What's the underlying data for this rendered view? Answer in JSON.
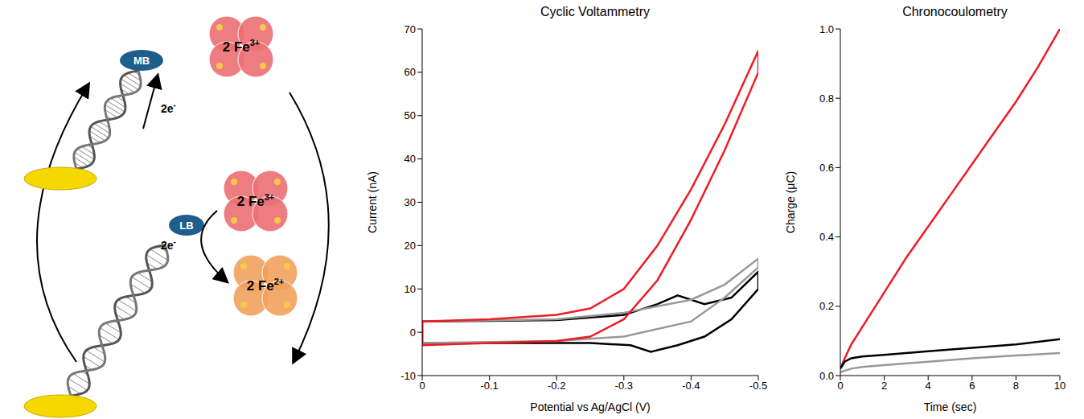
{
  "diagram": {
    "intercalators": [
      "MB",
      "LB"
    ],
    "clusters": [
      {
        "base": "2 Fe",
        "superscript": "3+",
        "color": "#ec6f73"
      },
      {
        "base": "2 Fe",
        "superscript": "3+",
        "color": "#ec6f73"
      },
      {
        "base": "2 Fe",
        "superscript": "2+",
        "color": "#f2a15e"
      }
    ],
    "electron_labels": [
      {
        "base": "2e",
        "superscript": "-"
      },
      {
        "base": "2e",
        "superscript": "-"
      }
    ]
  },
  "chart_data": [
    {
      "type": "line",
      "title": "Cyclic Voltammetry",
      "x_label": "Potential vs Ag/AgCl (V)",
      "y_label": "Current (nA)",
      "xlim": [
        0,
        -0.5
      ],
      "xticks": [
        0,
        -0.1,
        -0.2,
        -0.3,
        -0.4,
        -0.5
      ],
      "ylim": [
        -10,
        70
      ],
      "yticks": [
        -10,
        0,
        10,
        20,
        30,
        40,
        50,
        60,
        70
      ],
      "grid": false,
      "series": [
        {
          "color": "#000000",
          "x": [
            0,
            -0.1,
            -0.2,
            -0.3,
            -0.35,
            -0.38,
            -0.42,
            -0.46,
            -0.5,
            -0.5,
            -0.46,
            -0.42,
            -0.38,
            -0.34,
            -0.31,
            -0.25,
            -0.1,
            0,
            0
          ],
          "values": [
            2.5,
            2.6,
            2.8,
            4,
            6.5,
            8.5,
            6.5,
            8,
            14,
            10,
            3,
            -1,
            -3,
            -4.5,
            -3,
            -2.5,
            -2.5,
            -2.5,
            2.5
          ]
        },
        {
          "color": "#999999",
          "x": [
            0,
            -0.2,
            -0.3,
            -0.4,
            -0.45,
            -0.5,
            -0.5,
            -0.45,
            -0.4,
            -0.3,
            -0.2,
            0,
            0
          ],
          "values": [
            2.5,
            3,
            4.5,
            7.5,
            11,
            17,
            15,
            8,
            2.5,
            -1,
            -2,
            -2.5,
            2.5
          ]
        },
        {
          "color": "#ee1c25",
          "x": [
            0,
            -0.1,
            -0.2,
            -0.25,
            -0.3,
            -0.35,
            -0.4,
            -0.45,
            -0.5,
            -0.5,
            -0.45,
            -0.4,
            -0.35,
            -0.3,
            -0.25,
            -0.2,
            -0.1,
            0,
            0
          ],
          "values": [
            2.5,
            3,
            4,
            5.5,
            10,
            20,
            33,
            48,
            65,
            60,
            42,
            26,
            12,
            3,
            -1,
            -2,
            -2.5,
            -3,
            2.5
          ]
        }
      ]
    },
    {
      "type": "line",
      "title": "Chronocoulometry",
      "x_label": "Time (sec)",
      "y_label": "Charge (μC)",
      "xlim": [
        0,
        10
      ],
      "xticks": [
        0,
        2,
        4,
        6,
        8,
        10
      ],
      "ylim": [
        0,
        1
      ],
      "yticks": [
        {
          "value": 0,
          "label": "0.0"
        },
        0.2,
        0.4,
        0.6,
        0.8,
        {
          "value": 1,
          "label": "1.0"
        }
      ],
      "grid": false,
      "series": [
        {
          "color": "#ee1c25",
          "x": [
            0,
            0.2,
            0.5,
            1,
            2,
            3,
            4,
            5,
            6,
            7,
            8,
            9,
            10
          ],
          "values": [
            0.02,
            0.05,
            0.09,
            0.14,
            0.24,
            0.34,
            0.43,
            0.52,
            0.61,
            0.7,
            0.79,
            0.89,
            1.0
          ]
        },
        {
          "color": "#000000",
          "x": [
            0,
            0.2,
            0.5,
            1,
            2,
            4,
            6,
            8,
            10
          ],
          "values": [
            0.02,
            0.04,
            0.05,
            0.055,
            0.06,
            0.07,
            0.08,
            0.09,
            0.105
          ]
        },
        {
          "color": "#999999",
          "x": [
            0,
            0.5,
            1,
            2,
            4,
            6,
            8,
            10
          ],
          "values": [
            0.01,
            0.02,
            0.025,
            0.03,
            0.04,
            0.05,
            0.058,
            0.065
          ]
        }
      ]
    }
  ]
}
